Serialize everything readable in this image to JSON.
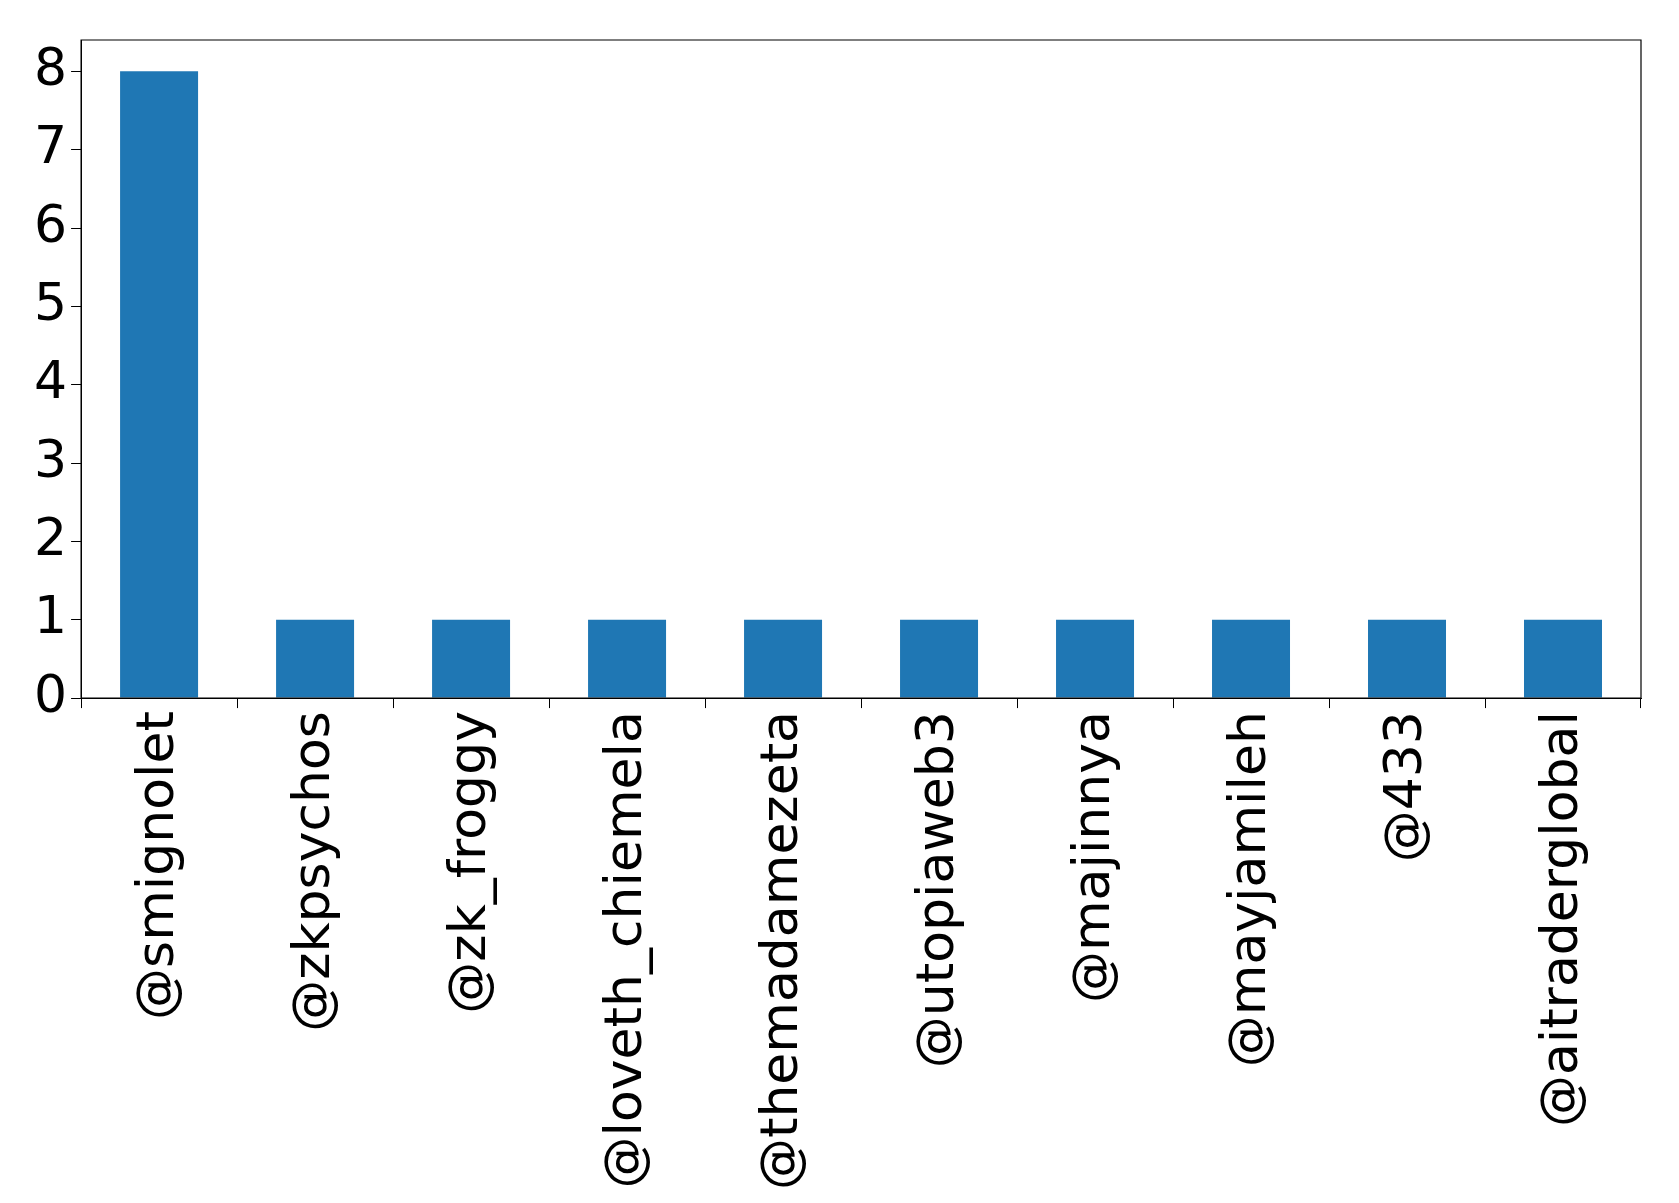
{
  "chart_data": {
    "type": "bar",
    "categories": [
      "@smignolet",
      "@zkpsychos",
      "@zk_froggy",
      "@loveth_chiemela",
      "@themadamezeta",
      "@utopiaweb3",
      "@majinnya",
      "@mayjamileh",
      "@433",
      "@aitraderglobal"
    ],
    "values": [
      8,
      1,
      1,
      1,
      1,
      1,
      1,
      1,
      1,
      1
    ],
    "color": "#1f77b4",
    "ylim": [
      0,
      8.4
    ],
    "yticks": [
      0,
      1,
      2,
      3,
      4,
      5,
      6,
      7,
      8
    ],
    "grid": false,
    "legend": false
  }
}
